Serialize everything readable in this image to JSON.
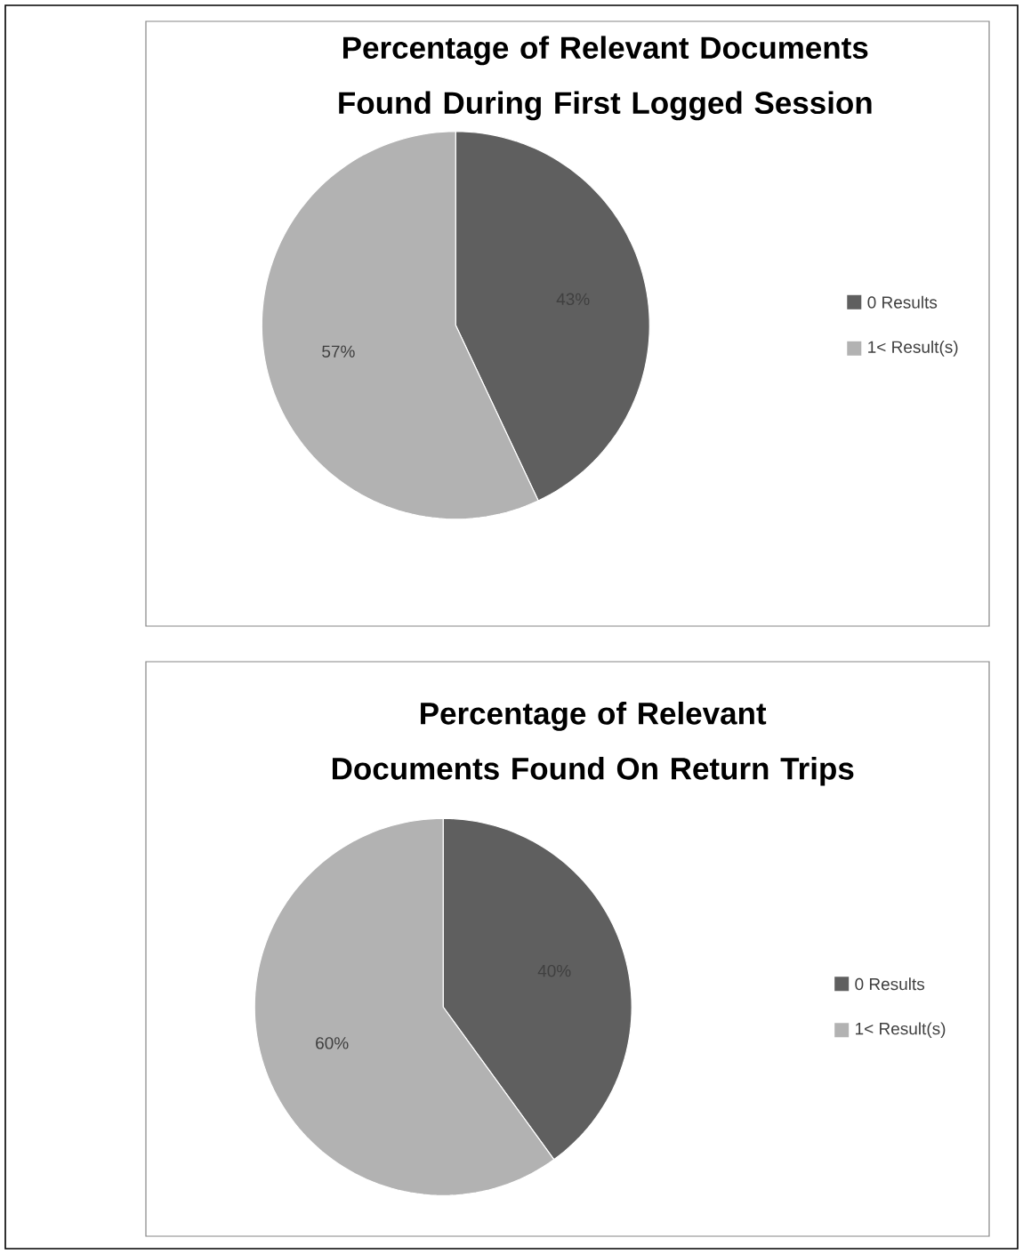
{
  "chart_data": [
    {
      "type": "pie",
      "title": "Percentage of Relevant Documents Found During First Logged Session",
      "categories": [
        "0 Results",
        "1< Result(s)"
      ],
      "values": [
        43,
        57
      ],
      "value_labels": [
        "43%",
        "57%"
      ],
      "data_labels": false,
      "colors": [
        "#5f5f5f",
        "#b2b2b2"
      ],
      "legend": "right"
    },
    {
      "type": "pie",
      "title": "Percentage of Relevant Documents Found On Return Trips",
      "categories": [
        "0 Results",
        "1< Result(s)"
      ],
      "values": [
        40,
        60
      ],
      "value_labels": [
        "40%",
        "60%"
      ],
      "colors": [
        "#5f5f5f",
        "#b2b2b2"
      ],
      "legend": "right"
    }
  ]
}
